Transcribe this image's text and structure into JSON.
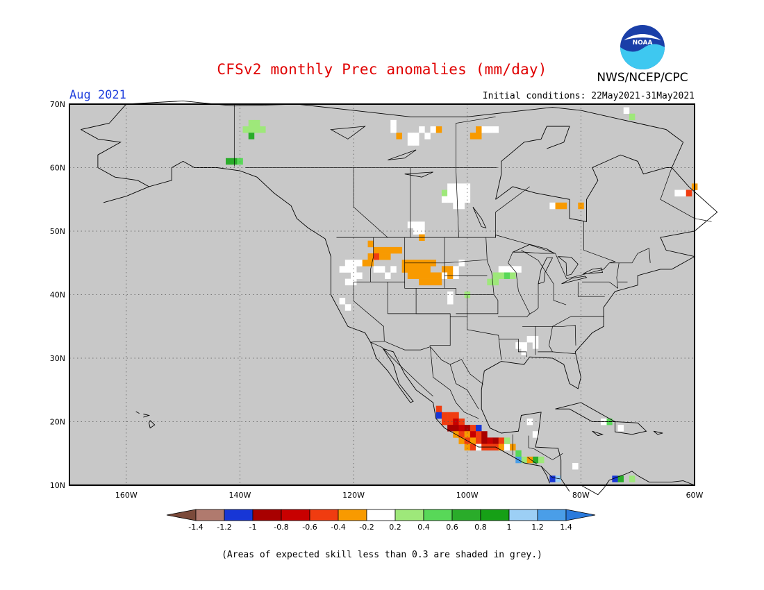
{
  "title": "CFSv2 monthly Prec anomalies (mm/day)",
  "organization": "NWS/NCEP/CPC",
  "logo_text": "NOAA",
  "valid_month": "Aug 2021",
  "initial_conditions": "Initial conditions: 22May2021-31May2021",
  "footnote": "(Areas of expected skill less than 0.3 are shaded in grey.)",
  "map": {
    "lon_range": [
      -170,
      -60
    ],
    "lat_range": [
      10,
      70
    ],
    "background_color": "#c8c8c8",
    "grid_lines": "dotted",
    "lat_labels": [
      "70N",
      "60N",
      "50N",
      "40N",
      "30N",
      "20N",
      "10N"
    ],
    "lon_labels": [
      "160W",
      "140W",
      "120W",
      "100W",
      "80W",
      "60W"
    ]
  },
  "colorbar": {
    "boundaries": [
      "-1.4",
      "-1.2",
      "-1",
      "-0.8",
      "-0.6",
      "-0.4",
      "-0.2",
      "0.2",
      "0.4",
      "0.6",
      "0.8",
      "1",
      "1.2",
      "1.4"
    ],
    "colors": [
      "#7b4a3a",
      "#b07a6e",
      "#1736d6",
      "#a80000",
      "#c80000",
      "#f03c10",
      "#f89a00",
      "#ffffff",
      "#9ee87a",
      "#58d858",
      "#2aac2a",
      "#16a016",
      "#9ccff5",
      "#4a9ee8",
      "#2a7adc"
    ]
  },
  "anomaly_cells": [
    {
      "lon": -139,
      "lat": 66,
      "color": "#9ee87a"
    },
    {
      "lon": -138,
      "lat": 66,
      "color": "#9ee87a"
    },
    {
      "lon": -137,
      "lat": 66,
      "color": "#9ee87a"
    },
    {
      "lon": -136,
      "lat": 66,
      "color": "#9ee87a"
    },
    {
      "lon": -138,
      "lat": 67,
      "color": "#9ee87a"
    },
    {
      "lon": -137,
      "lat": 67,
      "color": "#9ee87a"
    },
    {
      "lon": -138,
      "lat": 65,
      "color": "#2aac2a"
    },
    {
      "lon": -142,
      "lat": 61,
      "color": "#2aac2a"
    },
    {
      "lon": -141,
      "lat": 61,
      "color": "#2aac2a"
    },
    {
      "lon": -140,
      "lat": 61,
      "color": "#58d858"
    },
    {
      "lon": -113,
      "lat": 67,
      "color": "#ffffff"
    },
    {
      "lon": -113,
      "lat": 66,
      "color": "#ffffff"
    },
    {
      "lon": -112,
      "lat": 65,
      "color": "#f89a00"
    },
    {
      "lon": -110,
      "lat": 65,
      "color": "#ffffff"
    },
    {
      "lon": -109,
      "lat": 65,
      "color": "#ffffff"
    },
    {
      "lon": -109,
      "lat": 64,
      "color": "#ffffff"
    },
    {
      "lon": -110,
      "lat": 64,
      "color": "#ffffff"
    },
    {
      "lon": -108,
      "lat": 66,
      "color": "#ffffff"
    },
    {
      "lon": -107,
      "lat": 65,
      "color": "#ffffff"
    },
    {
      "lon": -106,
      "lat": 66,
      "color": "#ffffff"
    },
    {
      "lon": -105,
      "lat": 66,
      "color": "#f89a00"
    },
    {
      "lon": -99,
      "lat": 65,
      "color": "#f89a00"
    },
    {
      "lon": -98,
      "lat": 65,
      "color": "#f89a00"
    },
    {
      "lon": -97,
      "lat": 66,
      "color": "#ffffff"
    },
    {
      "lon": -96,
      "lat": 66,
      "color": "#ffffff"
    },
    {
      "lon": -95,
      "lat": 66,
      "color": "#ffffff"
    },
    {
      "lon": -98,
      "lat": 66,
      "color": "#f89a00"
    },
    {
      "lon": -103,
      "lat": 57,
      "color": "#ffffff"
    },
    {
      "lon": -102,
      "lat": 57,
      "color": "#ffffff"
    },
    {
      "lon": -101,
      "lat": 57,
      "color": "#ffffff"
    },
    {
      "lon": -100,
      "lat": 57,
      "color": "#ffffff"
    },
    {
      "lon": -104,
      "lat": 56,
      "color": "#9ee87a"
    },
    {
      "lon": -103,
      "lat": 56,
      "color": "#ffffff"
    },
    {
      "lon": -102,
      "lat": 56,
      "color": "#ffffff"
    },
    {
      "lon": -101,
      "lat": 56,
      "color": "#ffffff"
    },
    {
      "lon": -100,
      "lat": 56,
      "color": "#ffffff"
    },
    {
      "lon": -103,
      "lat": 55,
      "color": "#ffffff"
    },
    {
      "lon": -102,
      "lat": 55,
      "color": "#ffffff"
    },
    {
      "lon": -101,
      "lat": 55,
      "color": "#ffffff"
    },
    {
      "lon": -100,
      "lat": 55,
      "color": "#ffffff"
    },
    {
      "lon": -104,
      "lat": 55,
      "color": "#ffffff"
    },
    {
      "lon": -102,
      "lat": 54,
      "color": "#ffffff"
    },
    {
      "lon": -101,
      "lat": 54,
      "color": "#ffffff"
    },
    {
      "lon": -110,
      "lat": 51,
      "color": "#ffffff"
    },
    {
      "lon": -109,
      "lat": 51,
      "color": "#ffffff"
    },
    {
      "lon": -108,
      "lat": 51,
      "color": "#ffffff"
    },
    {
      "lon": -108,
      "lat": 50,
      "color": "#ffffff"
    },
    {
      "lon": -109,
      "lat": 50,
      "color": "#ffffff"
    },
    {
      "lon": -108,
      "lat": 49,
      "color": "#f89a00"
    },
    {
      "lon": -85,
      "lat": 54,
      "color": "#ffffff"
    },
    {
      "lon": -84,
      "lat": 54,
      "color": "#f89a00"
    },
    {
      "lon": -83,
      "lat": 54,
      "color": "#f89a00"
    },
    {
      "lon": -80,
      "lat": 54,
      "color": "#f89a00"
    },
    {
      "lon": -63,
      "lat": 56,
      "color": "#ffffff"
    },
    {
      "lon": -62,
      "lat": 56,
      "color": "#ffffff"
    },
    {
      "lon": -61,
      "lat": 56,
      "color": "#f03c10"
    },
    {
      "lon": -60,
      "lat": 57,
      "color": "#f89a00"
    },
    {
      "lon": -117,
      "lat": 48,
      "color": "#f89a00"
    },
    {
      "lon": -116,
      "lat": 47,
      "color": "#f89a00"
    },
    {
      "lon": -115,
      "lat": 47,
      "color": "#f89a00"
    },
    {
      "lon": -114,
      "lat": 47,
      "color": "#f89a00"
    },
    {
      "lon": -113,
      "lat": 47,
      "color": "#f89a00"
    },
    {
      "lon": -112,
      "lat": 47,
      "color": "#f89a00"
    },
    {
      "lon": -117,
      "lat": 46,
      "color": "#f89a00"
    },
    {
      "lon": -116,
      "lat": 46,
      "color": "#f03c10"
    },
    {
      "lon": -115,
      "lat": 46,
      "color": "#f89a00"
    },
    {
      "lon": -114,
      "lat": 46,
      "color": "#f89a00"
    },
    {
      "lon": -118,
      "lat": 45,
      "color": "#f89a00"
    },
    {
      "lon": -117,
      "lat": 45,
      "color": "#f89a00"
    },
    {
      "lon": -119,
      "lat": 45,
      "color": "#ffffff"
    },
    {
      "lon": -120,
      "lat": 45,
      "color": "#ffffff"
    },
    {
      "lon": -121,
      "lat": 45,
      "color": "#ffffff"
    },
    {
      "lon": -122,
      "lat": 44,
      "color": "#ffffff"
    },
    {
      "lon": -121,
      "lat": 44,
      "color": "#ffffff"
    },
    {
      "lon": -120,
      "lat": 44,
      "color": "#ffffff"
    },
    {
      "lon": -119,
      "lat": 43,
      "color": "#ffffff"
    },
    {
      "lon": -120,
      "lat": 43,
      "color": "#ffffff"
    },
    {
      "lon": -121,
      "lat": 42,
      "color": "#ffffff"
    },
    {
      "lon": -120,
      "lat": 42,
      "color": "#ffffff"
    },
    {
      "lon": -116,
      "lat": 44,
      "color": "#ffffff"
    },
    {
      "lon": -115,
      "lat": 44,
      "color": "#ffffff"
    },
    {
      "lon": -114,
      "lat": 43,
      "color": "#ffffff"
    },
    {
      "lon": -113,
      "lat": 44,
      "color": "#ffffff"
    },
    {
      "lon": -111,
      "lat": 45,
      "color": "#f89a00"
    },
    {
      "lon": -110,
      "lat": 45,
      "color": "#f89a00"
    },
    {
      "lon": -109,
      "lat": 45,
      "color": "#f89a00"
    },
    {
      "lon": -108,
      "lat": 45,
      "color": "#f89a00"
    },
    {
      "lon": -107,
      "lat": 45,
      "color": "#f89a00"
    },
    {
      "lon": -106,
      "lat": 45,
      "color": "#f89a00"
    },
    {
      "lon": -111,
      "lat": 44,
      "color": "#f89a00"
    },
    {
      "lon": -110,
      "lat": 44,
      "color": "#f89a00"
    },
    {
      "lon": -109,
      "lat": 44,
      "color": "#f89a00"
    },
    {
      "lon": -108,
      "lat": 44,
      "color": "#f89a00"
    },
    {
      "lon": -107,
      "lat": 44,
      "color": "#f89a00"
    },
    {
      "lon": -104,
      "lat": 44,
      "color": "#f89a00"
    },
    {
      "lon": -103,
      "lat": 44,
      "color": "#f89a00"
    },
    {
      "lon": -110,
      "lat": 43,
      "color": "#f89a00"
    },
    {
      "lon": -109,
      "lat": 43,
      "color": "#f89a00"
    },
    {
      "lon": -108,
      "lat": 43,
      "color": "#f89a00"
    },
    {
      "lon": -107,
      "lat": 43,
      "color": "#f89a00"
    },
    {
      "lon": -106,
      "lat": 43,
      "color": "#f89a00"
    },
    {
      "lon": -105,
      "lat": 43,
      "color": "#f89a00"
    },
    {
      "lon": -104,
      "lat": 43,
      "color": "#ffffff"
    },
    {
      "lon": -108,
      "lat": 42,
      "color": "#f89a00"
    },
    {
      "lon": -107,
      "lat": 42,
      "color": "#f89a00"
    },
    {
      "lon": -106,
      "lat": 42,
      "color": "#f89a00"
    },
    {
      "lon": -105,
      "lat": 42,
      "color": "#f89a00"
    },
    {
      "lon": -103,
      "lat": 43,
      "color": "#f89a00"
    },
    {
      "lon": -102,
      "lat": 43,
      "color": "#ffffff"
    },
    {
      "lon": -102,
      "lat": 44,
      "color": "#ffffff"
    },
    {
      "lon": -101,
      "lat": 45,
      "color": "#ffffff"
    },
    {
      "lon": -103,
      "lat": 40,
      "color": "#ffffff"
    },
    {
      "lon": -103,
      "lat": 39,
      "color": "#ffffff"
    },
    {
      "lon": -100,
      "lat": 40,
      "color": "#9ee87a"
    },
    {
      "lon": -94,
      "lat": 44,
      "color": "#ffffff"
    },
    {
      "lon": -93,
      "lat": 44,
      "color": "#ffffff"
    },
    {
      "lon": -92,
      "lat": 44,
      "color": "#ffffff"
    },
    {
      "lon": -95,
      "lat": 43,
      "color": "#9ee87a"
    },
    {
      "lon": -94,
      "lat": 43,
      "color": "#9ee87a"
    },
    {
      "lon": -93,
      "lat": 43,
      "color": "#58d858"
    },
    {
      "lon": -92,
      "lat": 43,
      "color": "#9ee87a"
    },
    {
      "lon": -96,
      "lat": 42,
      "color": "#9ee87a"
    },
    {
      "lon": -95,
      "lat": 42,
      "color": "#9ee87a"
    },
    {
      "lon": -91,
      "lat": 44,
      "color": "#ffffff"
    },
    {
      "lon": -122,
      "lat": 39,
      "color": "#ffffff"
    },
    {
      "lon": -121,
      "lat": 38,
      "color": "#ffffff"
    },
    {
      "lon": -91,
      "lat": 32,
      "color": "#ffffff"
    },
    {
      "lon": -90,
      "lat": 32,
      "color": "#ffffff"
    },
    {
      "lon": -89,
      "lat": 33,
      "color": "#ffffff"
    },
    {
      "lon": -88,
      "lat": 33,
      "color": "#ffffff"
    },
    {
      "lon": -88,
      "lat": 32,
      "color": "#ffffff"
    },
    {
      "lon": -90,
      "lat": 31,
      "color": "#ffffff"
    },
    {
      "lon": -105,
      "lat": 22,
      "color": "#f03c10"
    },
    {
      "lon": -105,
      "lat": 21,
      "color": "#1736d6"
    },
    {
      "lon": -104,
      "lat": 21,
      "color": "#f03c10"
    },
    {
      "lon": -103,
      "lat": 21,
      "color": "#f03c10"
    },
    {
      "lon": -102,
      "lat": 21,
      "color": "#f03c10"
    },
    {
      "lon": -104,
      "lat": 20,
      "color": "#f03c10"
    },
    {
      "lon": -103,
      "lat": 20,
      "color": "#f03c10"
    },
    {
      "lon": -102,
      "lat": 20,
      "color": "#c80000"
    },
    {
      "lon": -101,
      "lat": 20,
      "color": "#f03c10"
    },
    {
      "lon": -103,
      "lat": 19,
      "color": "#a80000"
    },
    {
      "lon": -102,
      "lat": 19,
      "color": "#a80000"
    },
    {
      "lon": -101,
      "lat": 19,
      "color": "#c80000"
    },
    {
      "lon": -100,
      "lat": 19,
      "color": "#a80000"
    },
    {
      "lon": -99,
      "lat": 19,
      "color": "#f03c10"
    },
    {
      "lon": -98,
      "lat": 19,
      "color": "#1736d6"
    },
    {
      "lon": -102,
      "lat": 18,
      "color": "#f89a00"
    },
    {
      "lon": -101,
      "lat": 18,
      "color": "#f03c10"
    },
    {
      "lon": -100,
      "lat": 18,
      "color": "#f89a00"
    },
    {
      "lon": -99,
      "lat": 18,
      "color": "#c80000"
    },
    {
      "lon": -98,
      "lat": 18,
      "color": "#f03c10"
    },
    {
      "lon": -97,
      "lat": 18,
      "color": "#a80000"
    },
    {
      "lon": -101,
      "lat": 17,
      "color": "#f89a00"
    },
    {
      "lon": -100,
      "lat": 17,
      "color": "#f03c10"
    },
    {
      "lon": -99,
      "lat": 17,
      "color": "#f89a00"
    },
    {
      "lon": -98,
      "lat": 17,
      "color": "#f03c10"
    },
    {
      "lon": -97,
      "lat": 17,
      "color": "#a80000"
    },
    {
      "lon": -96,
      "lat": 17,
      "color": "#c80000"
    },
    {
      "lon": -95,
      "lat": 17,
      "color": "#a80000"
    },
    {
      "lon": -94,
      "lat": 17,
      "color": "#f03c10"
    },
    {
      "lon": -100,
      "lat": 16,
      "color": "#f89a00"
    },
    {
      "lon": -99,
      "lat": 16,
      "color": "#f03c10"
    },
    {
      "lon": -98,
      "lat": 16,
      "color": "#ffffff"
    },
    {
      "lon": -97,
      "lat": 16,
      "color": "#f03c10"
    },
    {
      "lon": -96,
      "lat": 16,
      "color": "#f03c10"
    },
    {
      "lon": -95,
      "lat": 16,
      "color": "#f03c10"
    },
    {
      "lon": -94,
      "lat": 16,
      "color": "#f89a00"
    },
    {
      "lon": -93,
      "lat": 16,
      "color": "#ffffff"
    },
    {
      "lon": -92,
      "lat": 16,
      "color": "#f89a00"
    },
    {
      "lon": -93,
      "lat": 17,
      "color": "#9ee87a"
    },
    {
      "lon": -91,
      "lat": 15,
      "color": "#58d858"
    },
    {
      "lon": -90,
      "lat": 14,
      "color": "#9ee87a"
    },
    {
      "lon": -91,
      "lat": 14,
      "color": "#4a9ee8"
    },
    {
      "lon": -88,
      "lat": 14,
      "color": "#2aac2a"
    },
    {
      "lon": -89,
      "lat": 14,
      "color": "#f89a00"
    },
    {
      "lon": -87,
      "lat": 14,
      "color": "#9ee87a"
    },
    {
      "lon": -85,
      "lat": 11,
      "color": "#1736d6"
    },
    {
      "lon": -84,
      "lat": 11,
      "color": "#9ccff5"
    },
    {
      "lon": -89,
      "lat": 20,
      "color": "#ffffff"
    },
    {
      "lon": -88,
      "lat": 18,
      "color": "#ffffff"
    },
    {
      "lon": -75,
      "lat": 20,
      "color": "#58d858"
    },
    {
      "lon": -76,
      "lat": 20,
      "color": "#ffffff"
    },
    {
      "lon": -73,
      "lat": 19,
      "color": "#ffffff"
    },
    {
      "lon": -74,
      "lat": 11,
      "color": "#1736d6"
    },
    {
      "lon": -73,
      "lat": 11,
      "color": "#2aac2a"
    },
    {
      "lon": -71,
      "lat": 11,
      "color": "#9ee87a"
    },
    {
      "lon": -81,
      "lat": 13,
      "color": "#ffffff"
    },
    {
      "lon": -72,
      "lat": 69,
      "color": "#ffffff"
    },
    {
      "lon": -71,
      "lat": 68,
      "color": "#9ee87a"
    }
  ]
}
